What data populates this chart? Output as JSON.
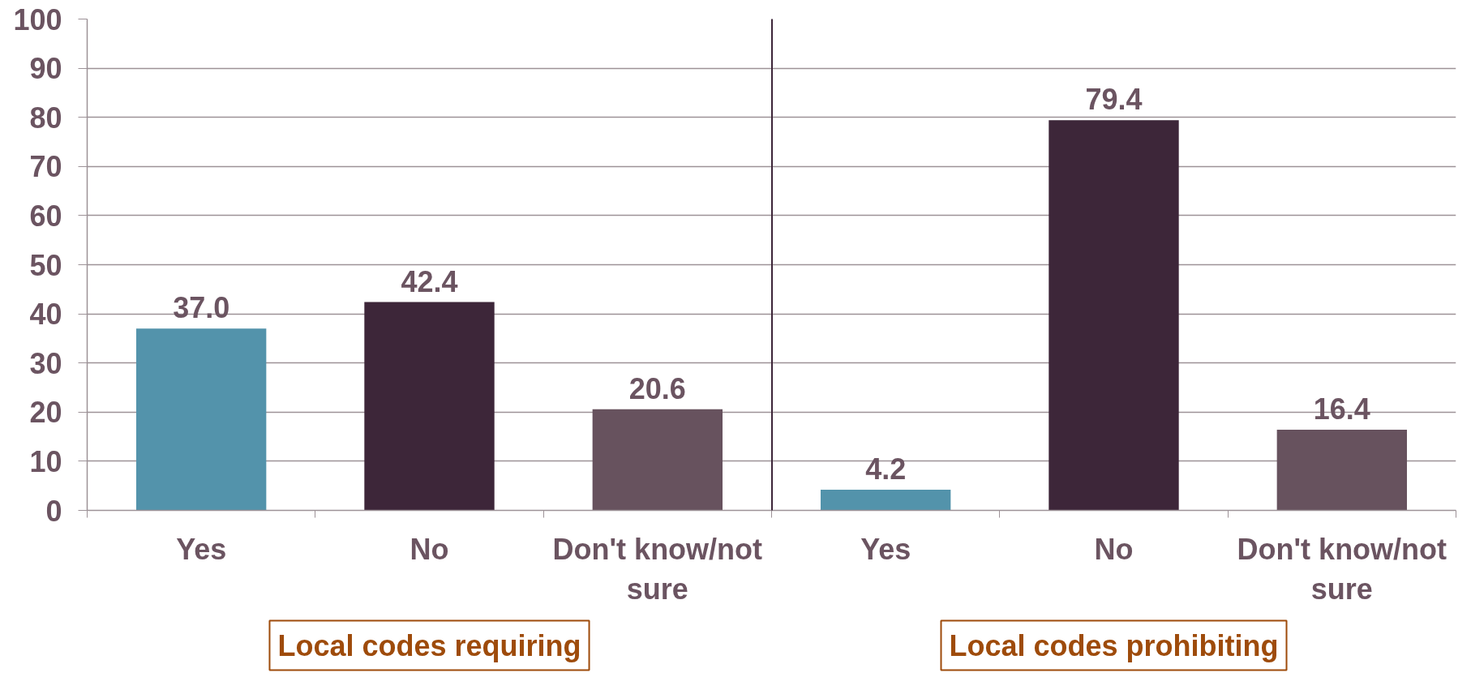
{
  "chart_data": [
    {
      "type": "bar",
      "xlabel": "Local codes requiring",
      "categories": [
        "Yes",
        "No",
        "Don't know/not sure"
      ],
      "values": [
        37.0,
        42.4,
        20.6
      ],
      "value_labels": [
        "37.0",
        "42.4",
        "20.6"
      ],
      "colors": [
        "#5393ab",
        "#3d2639",
        "#67525e"
      ],
      "ylim": [
        0,
        100
      ],
      "yticks": [
        0,
        10,
        20,
        30,
        40,
        50,
        60,
        70,
        80,
        90,
        100
      ],
      "grid": "y"
    },
    {
      "type": "bar",
      "xlabel": "Local codes prohibiting",
      "categories": [
        "Yes",
        "No",
        "Don't know/not sure"
      ],
      "values": [
        4.2,
        79.4,
        16.4
      ],
      "value_labels": [
        "4.2",
        "79.4",
        "16.4"
      ],
      "colors": [
        "#5393ab",
        "#3d2639",
        "#67525e"
      ],
      "ylim": [
        0,
        100
      ],
      "yticks": [
        0,
        10,
        20,
        30,
        40,
        50,
        60,
        70,
        80,
        90,
        100
      ],
      "grid": "y",
      "tick_labels": "x"
    }
  ]
}
